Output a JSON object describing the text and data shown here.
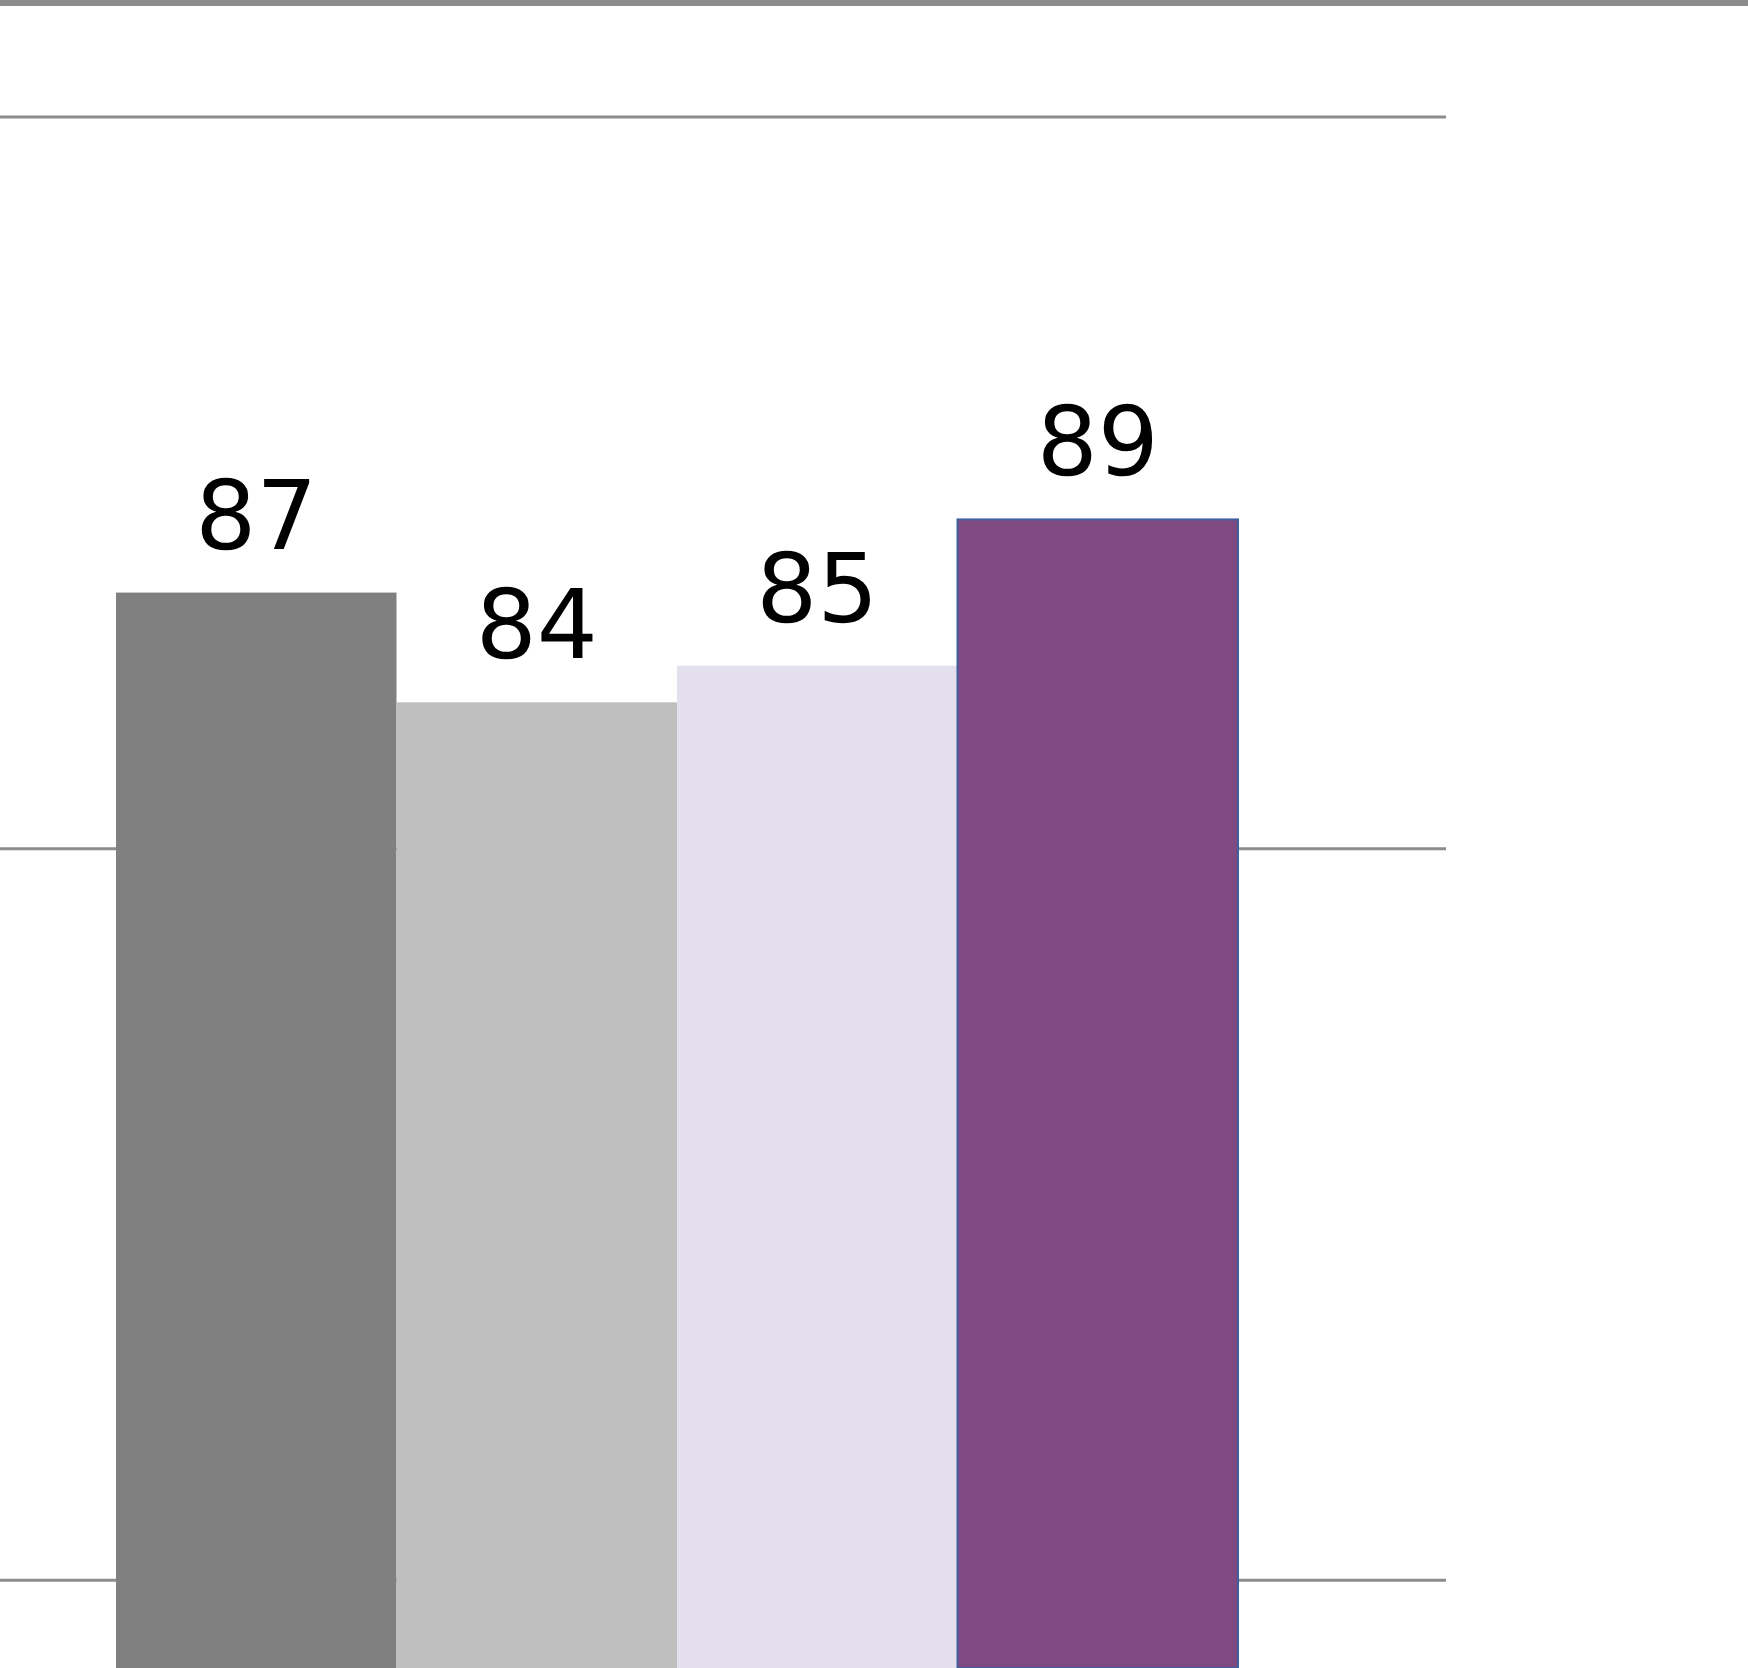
{
  "chart_data": {
    "type": "bar",
    "categories": [
      null,
      null,
      null,
      null
    ],
    "values": [
      87,
      84,
      85,
      89
    ],
    "colors": [
      "#808080",
      "#bfbfbf",
      "#e4dfec",
      "#7f4a81"
    ],
    "ylim": [
      57.6,
      103.2
    ],
    "yticks": [
      {
        "value": 60,
        "label": null
      },
      {
        "value": 80,
        "label": null
      },
      {
        "value": 100,
        "label": null
      }
    ],
    "grid": "y",
    "data_labels": true
  }
}
